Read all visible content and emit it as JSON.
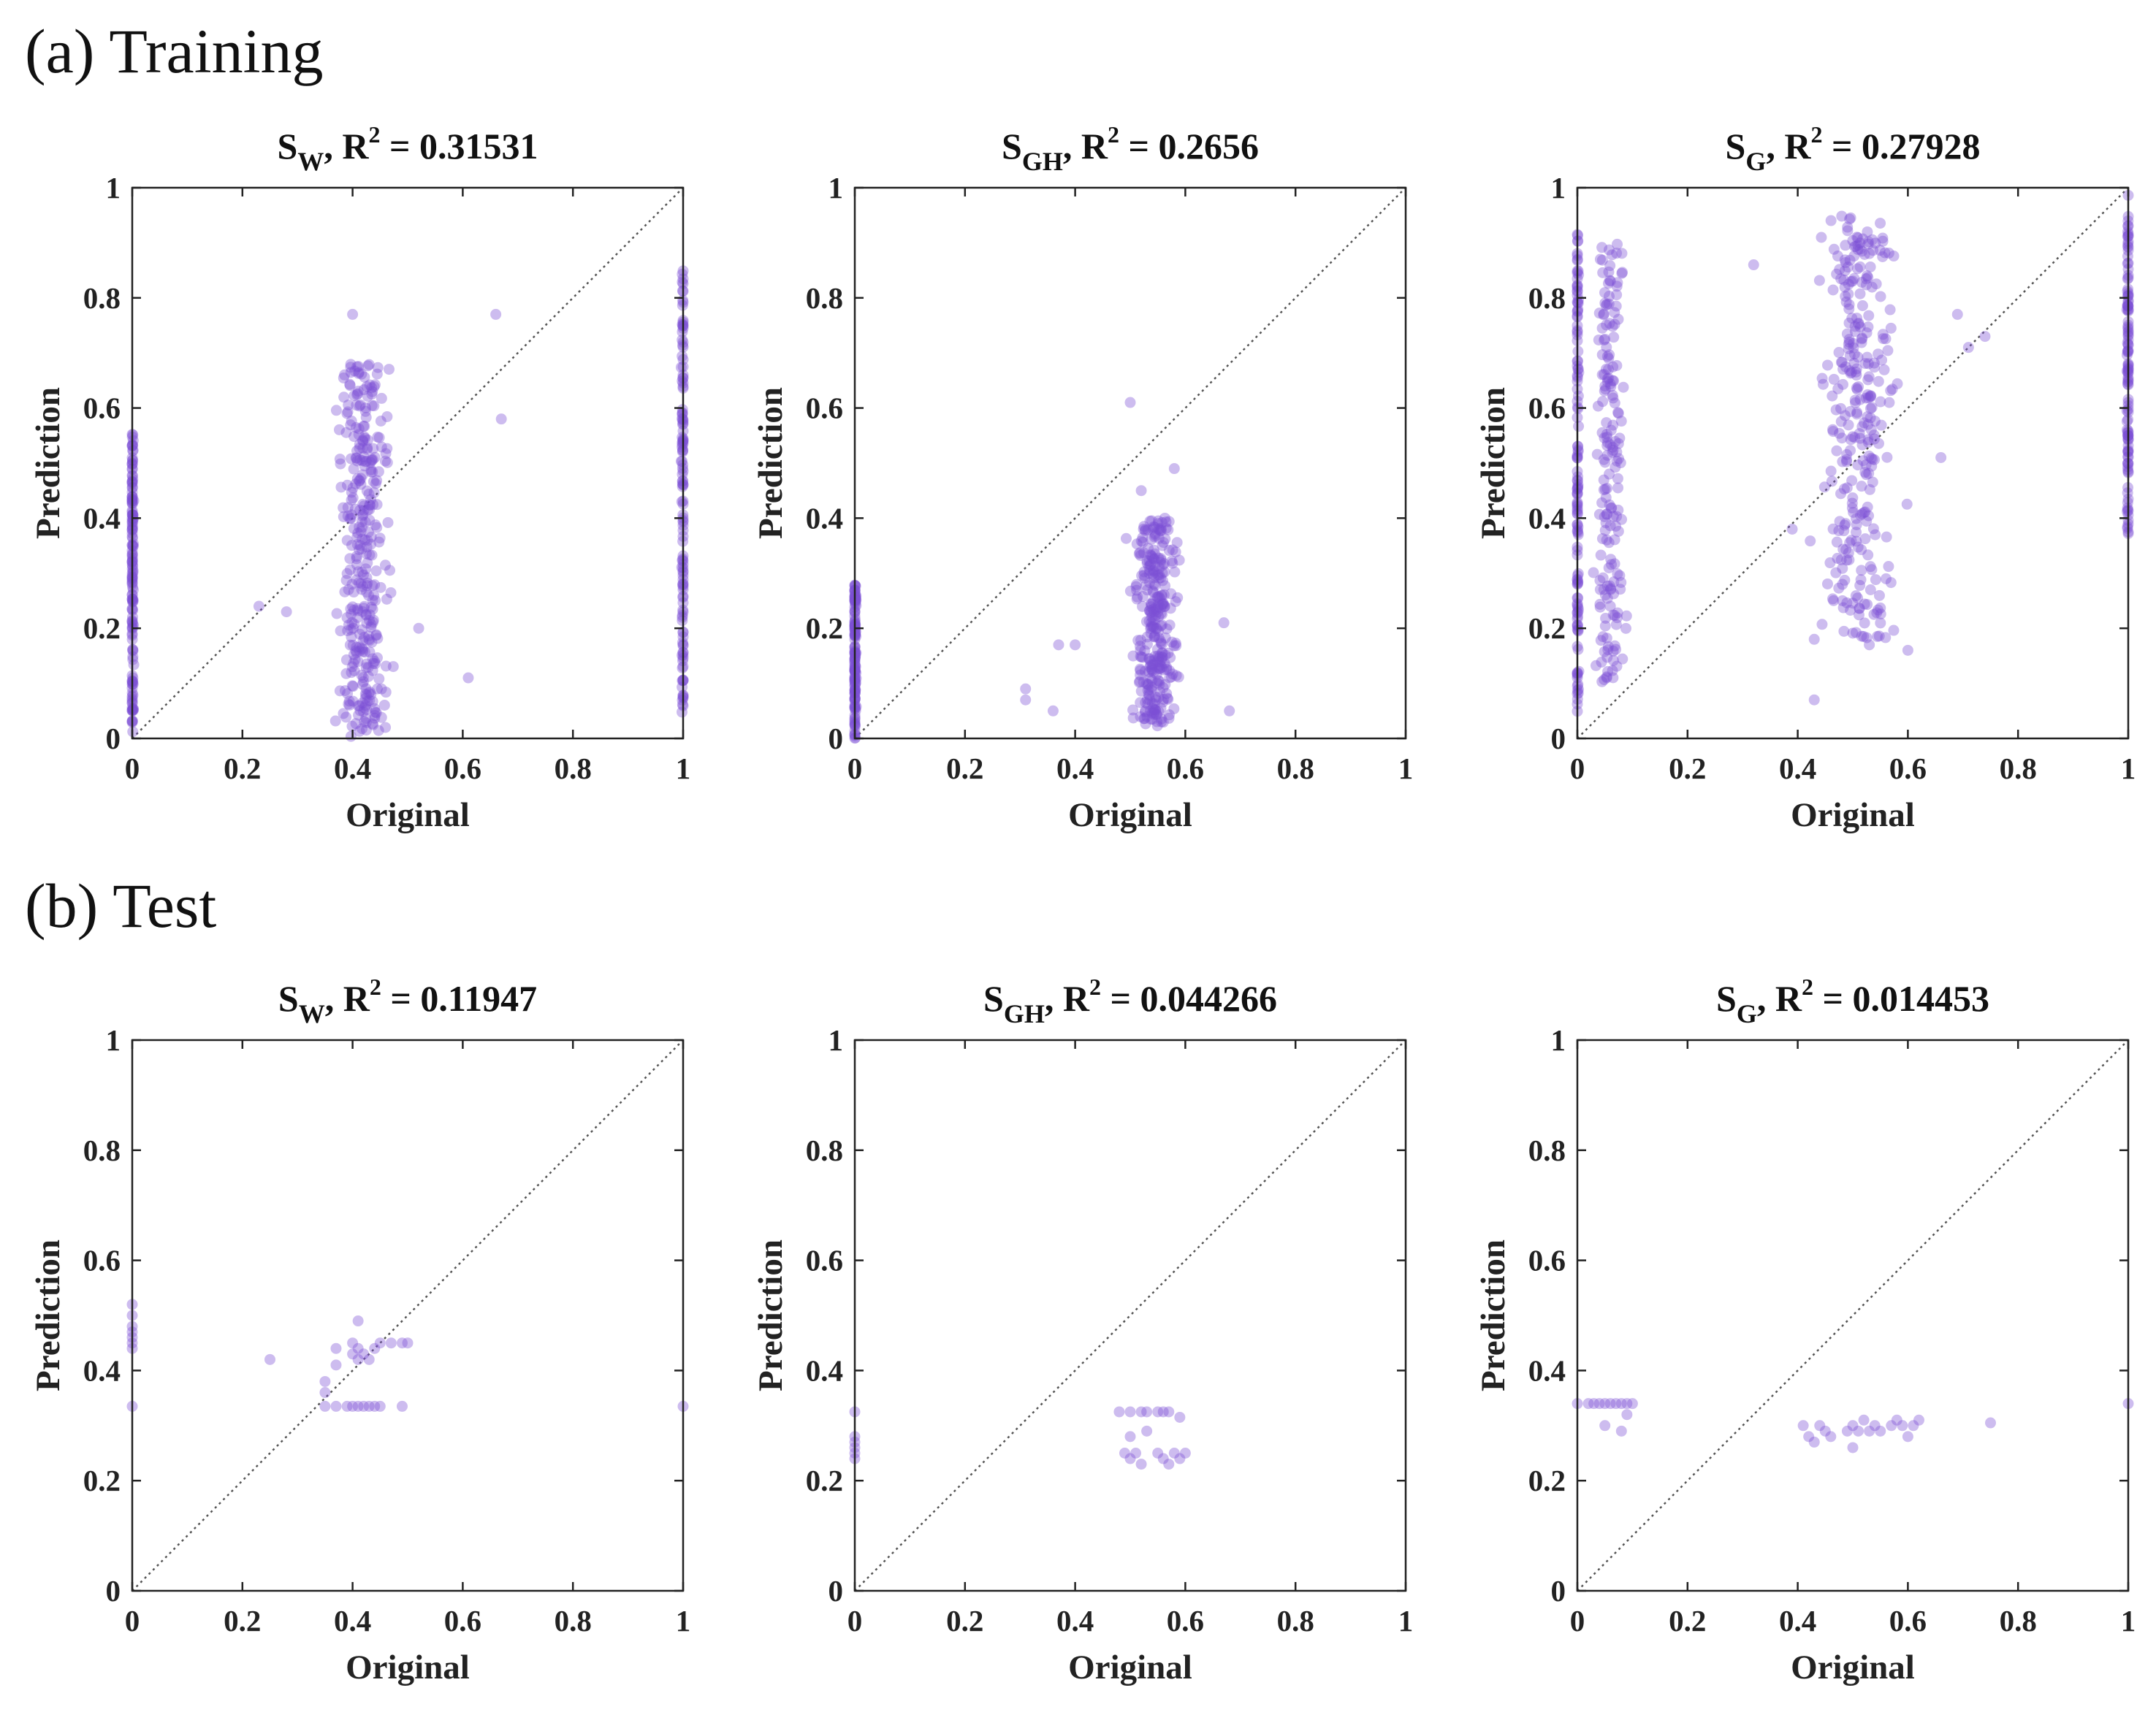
{
  "sections": {
    "training_label": "(a) Training",
    "test_label": "(b) Test"
  },
  "colors": {
    "point": "#7b4fd6",
    "diagonal": "#555555",
    "axis": "#222222"
  },
  "chart_data": [
    {
      "type": "scatter",
      "section": "training",
      "title": {
        "sym": "S",
        "sub": "W",
        "r2": "0.31531"
      },
      "xlabel": "Original",
      "ylabel": "Prediction",
      "xlim": [
        0,
        1
      ],
      "ylim": [
        0,
        1
      ],
      "xticks": [
        "0",
        "0.2",
        "0.4",
        "0.6",
        "0.8",
        "1"
      ],
      "yticks": [
        "0",
        "0.2",
        "0.4",
        "0.6",
        "0.8",
        "1"
      ],
      "reference_line": "y = x",
      "clusters": [
        {
          "x": 0.0,
          "xspread": 0.004,
          "ymin": 0.0,
          "ymax": 0.56,
          "n": 150
        },
        {
          "x": 0.42,
          "xspread": 0.075,
          "ymin": 0.0,
          "ymax": 0.68,
          "n": 340
        },
        {
          "x": 1.0,
          "xspread": 0.004,
          "ymin": 0.03,
          "ymax": 0.87,
          "n": 130
        }
      ],
      "points": [
        {
          "x": 0.66,
          "y": 0.77
        },
        {
          "x": 0.67,
          "y": 0.58
        },
        {
          "x": 0.61,
          "y": 0.11
        },
        {
          "x": 0.23,
          "y": 0.24
        },
        {
          "x": 0.28,
          "y": 0.23
        },
        {
          "x": 0.4,
          "y": 0.77
        },
        {
          "x": 0.52,
          "y": 0.2
        }
      ]
    },
    {
      "type": "scatter",
      "section": "training",
      "title": {
        "sym": "S",
        "sub": "GH",
        "r2": "0.2656"
      },
      "xlabel": "Original",
      "ylabel": "Prediction",
      "xlim": [
        0,
        1
      ],
      "ylim": [
        0,
        1
      ],
      "xticks": [
        "0",
        "0.2",
        "0.4",
        "0.6",
        "0.8",
        "1"
      ],
      "yticks": [
        "0",
        "0.2",
        "0.4",
        "0.6",
        "0.8",
        "1"
      ],
      "reference_line": "y = x",
      "clusters": [
        {
          "x": 0.0,
          "xspread": 0.004,
          "ymin": 0.0,
          "ymax": 0.28,
          "n": 140
        },
        {
          "x": 0.545,
          "xspread": 0.06,
          "ymin": 0.02,
          "ymax": 0.4,
          "n": 300
        }
      ],
      "points": [
        {
          "x": 0.5,
          "y": 0.61
        },
        {
          "x": 0.58,
          "y": 0.49
        },
        {
          "x": 0.31,
          "y": 0.07
        },
        {
          "x": 0.31,
          "y": 0.09
        },
        {
          "x": 0.36,
          "y": 0.05
        },
        {
          "x": 0.68,
          "y": 0.05
        },
        {
          "x": 0.67,
          "y": 0.21
        },
        {
          "x": 0.4,
          "y": 0.17
        },
        {
          "x": 0.37,
          "y": 0.17
        },
        {
          "x": 0.52,
          "y": 0.45
        }
      ]
    },
    {
      "type": "scatter",
      "section": "training",
      "title": {
        "sym": "S",
        "sub": "G",
        "r2": "0.27928"
      },
      "xlabel": "Original",
      "ylabel": "Prediction",
      "xlim": [
        0,
        1
      ],
      "ylim": [
        0,
        1
      ],
      "xticks": [
        "0",
        "0.2",
        "0.4",
        "0.6",
        "0.8",
        "1"
      ],
      "yticks": [
        "0",
        "0.2",
        "0.4",
        "0.6",
        "0.8",
        "1"
      ],
      "reference_line": "y = x",
      "clusters": [
        {
          "x": 0.0,
          "xspread": 0.004,
          "ymin": 0.02,
          "ymax": 0.92,
          "n": 130
        },
        {
          "x": 0.06,
          "xspread": 0.04,
          "ymin": 0.1,
          "ymax": 0.9,
          "n": 180
        },
        {
          "x": 0.51,
          "xspread": 0.1,
          "ymin": 0.18,
          "ymax": 0.95,
          "n": 300
        },
        {
          "x": 1.0,
          "xspread": 0.004,
          "ymin": 0.37,
          "ymax": 0.99,
          "n": 120
        }
      ],
      "points": [
        {
          "x": 0.32,
          "y": 0.86
        },
        {
          "x": 0.39,
          "y": 0.38
        },
        {
          "x": 0.43,
          "y": 0.07
        },
        {
          "x": 0.69,
          "y": 0.77
        },
        {
          "x": 0.74,
          "y": 0.73
        },
        {
          "x": 0.71,
          "y": 0.71
        },
        {
          "x": 0.53,
          "y": 0.17
        },
        {
          "x": 0.6,
          "y": 0.16
        },
        {
          "x": 0.43,
          "y": 0.18
        },
        {
          "x": 0.66,
          "y": 0.51
        }
      ]
    },
    {
      "type": "scatter",
      "section": "test",
      "title": {
        "sym": "S",
        "sub": "W",
        "r2": "0.11947"
      },
      "xlabel": "Original",
      "ylabel": "Prediction",
      "xlim": [
        0,
        1
      ],
      "ylim": [
        0,
        1
      ],
      "xticks": [
        "0",
        "0.2",
        "0.4",
        "0.6",
        "0.8",
        "1"
      ],
      "yticks": [
        "0",
        "0.2",
        "0.4",
        "0.6",
        "0.8",
        "1"
      ],
      "reference_line": "y = x",
      "points": [
        {
          "x": 0,
          "y": 0.335
        },
        {
          "x": 0,
          "y": 0.44
        },
        {
          "x": 0,
          "y": 0.45
        },
        {
          "x": 0,
          "y": 0.46
        },
        {
          "x": 0,
          "y": 0.47
        },
        {
          "x": 0,
          "y": 0.48
        },
        {
          "x": 0,
          "y": 0.5
        },
        {
          "x": 0,
          "y": 0.52
        },
        {
          "x": 1,
          "y": 0.335
        },
        {
          "x": 0.25,
          "y": 0.42
        },
        {
          "x": 0.35,
          "y": 0.335
        },
        {
          "x": 0.37,
          "y": 0.335
        },
        {
          "x": 0.39,
          "y": 0.335
        },
        {
          "x": 0.4,
          "y": 0.335
        },
        {
          "x": 0.41,
          "y": 0.335
        },
        {
          "x": 0.42,
          "y": 0.335
        },
        {
          "x": 0.43,
          "y": 0.335
        },
        {
          "x": 0.44,
          "y": 0.335
        },
        {
          "x": 0.45,
          "y": 0.335
        },
        {
          "x": 0.49,
          "y": 0.335
        },
        {
          "x": 0.35,
          "y": 0.38
        },
        {
          "x": 0.35,
          "y": 0.36
        },
        {
          "x": 0.37,
          "y": 0.41
        },
        {
          "x": 0.37,
          "y": 0.44
        },
        {
          "x": 0.4,
          "y": 0.43
        },
        {
          "x": 0.41,
          "y": 0.42
        },
        {
          "x": 0.41,
          "y": 0.44
        },
        {
          "x": 0.42,
          "y": 0.43
        },
        {
          "x": 0.43,
          "y": 0.42
        },
        {
          "x": 0.44,
          "y": 0.44
        },
        {
          "x": 0.45,
          "y": 0.45
        },
        {
          "x": 0.47,
          "y": 0.45
        },
        {
          "x": 0.49,
          "y": 0.45
        },
        {
          "x": 0.5,
          "y": 0.45
        },
        {
          "x": 0.41,
          "y": 0.49
        },
        {
          "x": 0.4,
          "y": 0.45
        }
      ]
    },
    {
      "type": "scatter",
      "section": "test",
      "title": {
        "sym": "S",
        "sub": "GH",
        "r2": "0.044266"
      },
      "xlabel": "Original",
      "ylabel": "Prediction",
      "xlim": [
        0,
        1
      ],
      "ylim": [
        0,
        1
      ],
      "xticks": [
        "0",
        "0.2",
        "0.4",
        "0.6",
        "0.8",
        "1"
      ],
      "yticks": [
        "0",
        "0.2",
        "0.4",
        "0.6",
        "0.8",
        "1"
      ],
      "reference_line": "y = x",
      "points": [
        {
          "x": 0,
          "y": 0.325
        },
        {
          "x": 0,
          "y": 0.28
        },
        {
          "x": 0,
          "y": 0.27
        },
        {
          "x": 0,
          "y": 0.26
        },
        {
          "x": 0,
          "y": 0.25
        },
        {
          "x": 0,
          "y": 0.24
        },
        {
          "x": 0.48,
          "y": 0.325
        },
        {
          "x": 0.5,
          "y": 0.325
        },
        {
          "x": 0.52,
          "y": 0.325
        },
        {
          "x": 0.53,
          "y": 0.325
        },
        {
          "x": 0.55,
          "y": 0.325
        },
        {
          "x": 0.56,
          "y": 0.325
        },
        {
          "x": 0.57,
          "y": 0.325
        },
        {
          "x": 0.59,
          "y": 0.315
        },
        {
          "x": 0.49,
          "y": 0.25
        },
        {
          "x": 0.5,
          "y": 0.24
        },
        {
          "x": 0.51,
          "y": 0.25
        },
        {
          "x": 0.52,
          "y": 0.23
        },
        {
          "x": 0.55,
          "y": 0.25
        },
        {
          "x": 0.56,
          "y": 0.24
        },
        {
          "x": 0.57,
          "y": 0.23
        },
        {
          "x": 0.58,
          "y": 0.25
        },
        {
          "x": 0.59,
          "y": 0.24
        },
        {
          "x": 0.6,
          "y": 0.25
        },
        {
          "x": 0.5,
          "y": 0.28
        },
        {
          "x": 0.53,
          "y": 0.29
        }
      ]
    },
    {
      "type": "scatter",
      "section": "test",
      "title": {
        "sym": "S",
        "sub": "G",
        "r2": "0.014453"
      },
      "xlabel": "Original",
      "ylabel": "Prediction",
      "xlim": [
        0,
        1
      ],
      "ylim": [
        0,
        1
      ],
      "xticks": [
        "0",
        "0.2",
        "0.4",
        "0.6",
        "0.8",
        "1"
      ],
      "yticks": [
        "0",
        "0.2",
        "0.4",
        "0.6",
        "0.8",
        "1"
      ],
      "reference_line": "y = x",
      "points": [
        {
          "x": 0,
          "y": 0.34
        },
        {
          "x": 1,
          "y": 0.34
        },
        {
          "x": 0.02,
          "y": 0.34
        },
        {
          "x": 0.03,
          "y": 0.34
        },
        {
          "x": 0.04,
          "y": 0.34
        },
        {
          "x": 0.05,
          "y": 0.34
        },
        {
          "x": 0.06,
          "y": 0.34
        },
        {
          "x": 0.07,
          "y": 0.34
        },
        {
          "x": 0.08,
          "y": 0.34
        },
        {
          "x": 0.09,
          "y": 0.34
        },
        {
          "x": 0.1,
          "y": 0.34
        },
        {
          "x": 0.05,
          "y": 0.3
        },
        {
          "x": 0.08,
          "y": 0.29
        },
        {
          "x": 0.09,
          "y": 0.32
        },
        {
          "x": 0.41,
          "y": 0.3
        },
        {
          "x": 0.42,
          "y": 0.28
        },
        {
          "x": 0.43,
          "y": 0.27
        },
        {
          "x": 0.44,
          "y": 0.3
        },
        {
          "x": 0.45,
          "y": 0.29
        },
        {
          "x": 0.46,
          "y": 0.28
        },
        {
          "x": 0.49,
          "y": 0.29
        },
        {
          "x": 0.5,
          "y": 0.3
        },
        {
          "x": 0.51,
          "y": 0.29
        },
        {
          "x": 0.52,
          "y": 0.31
        },
        {
          "x": 0.53,
          "y": 0.29
        },
        {
          "x": 0.54,
          "y": 0.3
        },
        {
          "x": 0.55,
          "y": 0.29
        },
        {
          "x": 0.57,
          "y": 0.3
        },
        {
          "x": 0.58,
          "y": 0.31
        },
        {
          "x": 0.59,
          "y": 0.3
        },
        {
          "x": 0.6,
          "y": 0.28
        },
        {
          "x": 0.61,
          "y": 0.3
        },
        {
          "x": 0.62,
          "y": 0.31
        },
        {
          "x": 0.75,
          "y": 0.305
        },
        {
          "x": 0.5,
          "y": 0.26
        }
      ]
    }
  ]
}
